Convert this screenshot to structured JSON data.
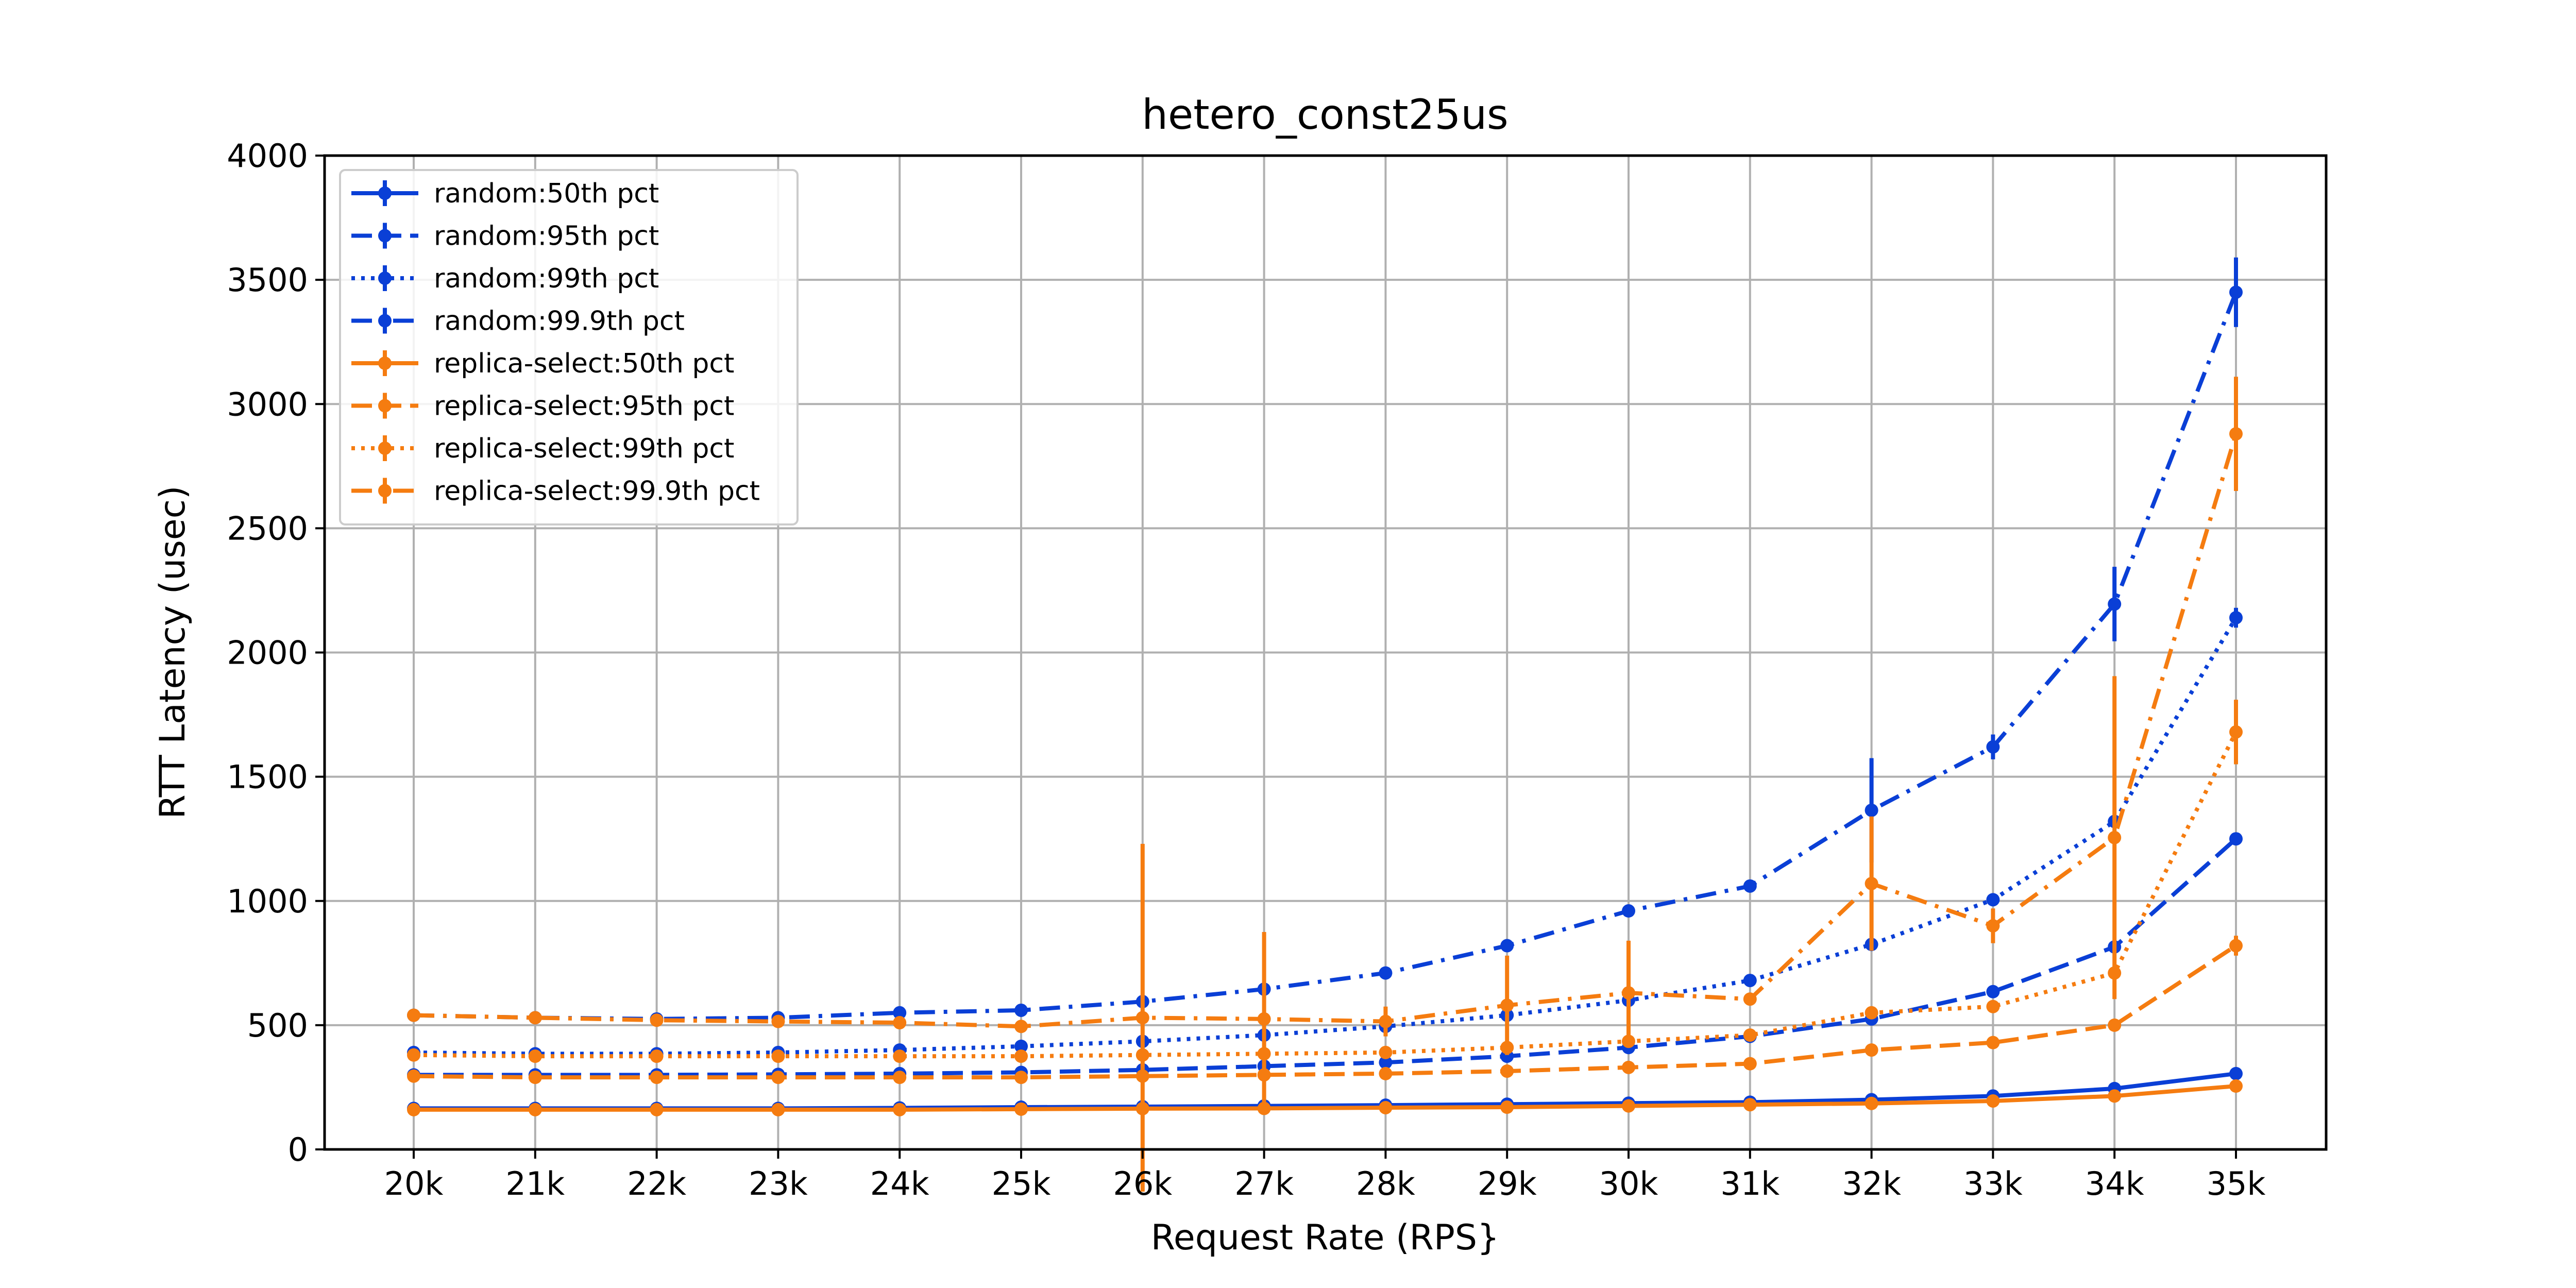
{
  "chart_data": {
    "type": "line",
    "title": "hetero_const25us",
    "xlabel": "Request Rate (RPS}",
    "ylabel": "RTT Latency (usec)",
    "categories": [
      "20k",
      "21k",
      "22k",
      "23k",
      "24k",
      "25k",
      "26k",
      "27k",
      "28k",
      "29k",
      "30k",
      "31k",
      "32k",
      "33k",
      "34k",
      "35k"
    ],
    "ylim": [
      0,
      4000
    ],
    "yticks": [
      "0",
      "500",
      "1000",
      "1500",
      "2000",
      "2500",
      "3000",
      "3500",
      "4000"
    ],
    "grid": true,
    "legend_position": "upper left",
    "series": [
      {
        "name": "random:50th pct",
        "color": "#0a3fd6",
        "dash": "solid",
        "values": [
          165,
          165,
          165,
          165,
          167,
          170,
          172,
          175,
          178,
          182,
          186,
          190,
          200,
          215,
          245,
          305
        ],
        "err": [
          0,
          0,
          0,
          0,
          0,
          0,
          0,
          0,
          0,
          0,
          0,
          0,
          0,
          0,
          0,
          0
        ]
      },
      {
        "name": "random:95th pct",
        "color": "#0a3fd6",
        "dash": "dashed",
        "values": [
          300,
          300,
          300,
          302,
          305,
          310,
          320,
          335,
          350,
          375,
          410,
          455,
          525,
          635,
          815,
          1250
        ],
        "err": [
          0,
          0,
          0,
          0,
          0,
          0,
          0,
          0,
          0,
          0,
          0,
          0,
          0,
          0,
          0,
          0
        ]
      },
      {
        "name": "random:99th pct",
        "color": "#0a3fd6",
        "dash": "dotted",
        "values": [
          390,
          385,
          385,
          390,
          400,
          415,
          435,
          460,
          495,
          540,
          600,
          680,
          825,
          1005,
          1320,
          2140
        ],
        "err": [
          0,
          0,
          0,
          0,
          0,
          0,
          0,
          0,
          0,
          0,
          0,
          0,
          0,
          0,
          0,
          40
        ]
      },
      {
        "name": "random:99.9th pct",
        "color": "#0a3fd6",
        "dash": "dashdot",
        "values": [
          540,
          530,
          525,
          530,
          550,
          560,
          595,
          645,
          710,
          820,
          960,
          1060,
          1365,
          1620,
          2195,
          3450
        ],
        "err": [
          0,
          0,
          0,
          0,
          0,
          0,
          0,
          0,
          0,
          0,
          0,
          0,
          210,
          50,
          150,
          140
        ]
      },
      {
        "name": "replica-select:50th pct",
        "color": "#f57c10",
        "dash": "solid",
        "values": [
          160,
          160,
          160,
          160,
          160,
          162,
          164,
          165,
          168,
          170,
          175,
          180,
          185,
          195,
          215,
          255
        ],
        "err": [
          0,
          0,
          0,
          0,
          0,
          0,
          0,
          0,
          0,
          0,
          0,
          0,
          0,
          0,
          0,
          0
        ]
      },
      {
        "name": "replica-select:95th pct",
        "color": "#f57c10",
        "dash": "dashed",
        "values": [
          295,
          290,
          290,
          290,
          290,
          290,
          295,
          300,
          305,
          315,
          330,
          345,
          400,
          430,
          500,
          820
        ],
        "err": [
          0,
          0,
          0,
          0,
          0,
          0,
          0,
          0,
          0,
          0,
          0,
          0,
          0,
          0,
          0,
          40
        ]
      },
      {
        "name": "replica-select:99th pct",
        "color": "#f57c10",
        "dash": "dotted",
        "values": [
          380,
          375,
          375,
          375,
          375,
          375,
          380,
          385,
          390,
          410,
          435,
          460,
          550,
          575,
          710,
          1680
        ],
        "err": [
          0,
          0,
          0,
          0,
          0,
          0,
          0,
          0,
          0,
          0,
          0,
          0,
          0,
          0,
          0,
          130
        ]
      },
      {
        "name": "replica-select:99.9th pct",
        "color": "#f57c10",
        "dash": "dashdot",
        "values": [
          540,
          530,
          520,
          515,
          510,
          495,
          530,
          525,
          515,
          580,
          630,
          605,
          1070,
          900,
          1255,
          2880
        ],
        "err": [
          0,
          0,
          0,
          0,
          0,
          0,
          700,
          350,
          60,
          200,
          210,
          0,
          270,
          70,
          650,
          230
        ]
      }
    ]
  }
}
